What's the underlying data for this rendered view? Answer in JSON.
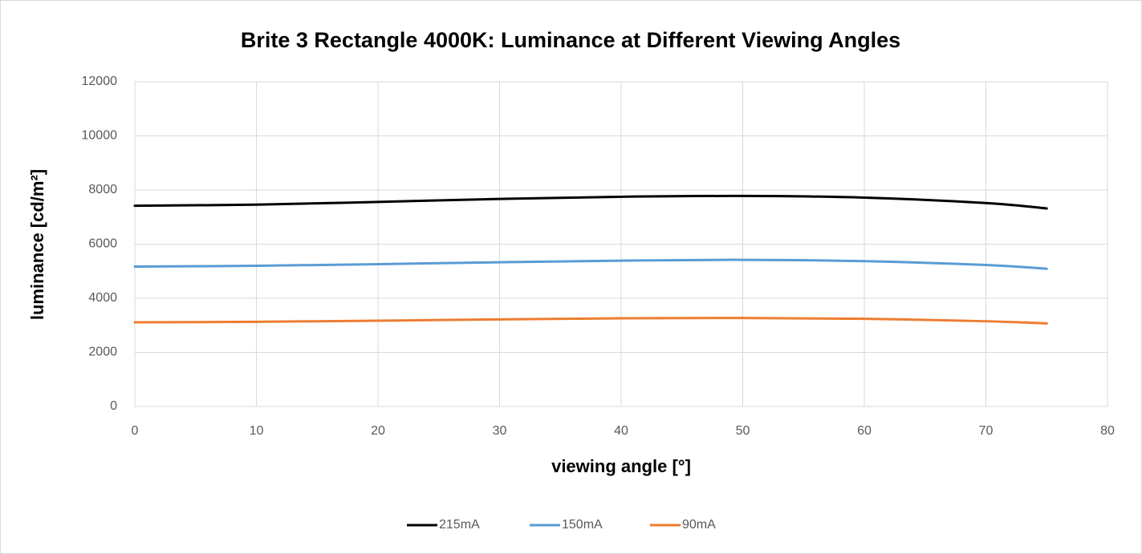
{
  "chart_data": {
    "type": "line",
    "title": "Brite 3 Rectangle 4000K: Luminance at Different Viewing Angles",
    "x_label": "viewing angle [°]",
    "y_label": "luminance [cd/m²]",
    "x": [
      0,
      10,
      20,
      30,
      40,
      50,
      60,
      70,
      75
    ],
    "series": [
      {
        "name": "215mA",
        "color": "#000000",
        "values": [
          7420,
          7460,
          7560,
          7670,
          7750,
          7780,
          7720,
          7520,
          7320
        ]
      },
      {
        "name": "150mA",
        "color": "#5b9bd5",
        "values": [
          5170,
          5200,
          5260,
          5330,
          5390,
          5420,
          5370,
          5230,
          5090
        ]
      },
      {
        "name": "90mA",
        "color": "#ed7d31",
        "values": [
          3110,
          3130,
          3170,
          3220,
          3260,
          3270,
          3240,
          3150,
          3070
        ]
      }
    ],
    "xlim": [
      0,
      80
    ],
    "xticks": [
      0,
      10,
      20,
      30,
      40,
      50,
      60,
      70,
      80
    ],
    "ylim": [
      0,
      12000
    ],
    "yticks": [
      0,
      2000,
      4000,
      6000,
      8000,
      10000,
      12000
    ],
    "grid": true,
    "legend": "bottom",
    "smooth": true
  }
}
